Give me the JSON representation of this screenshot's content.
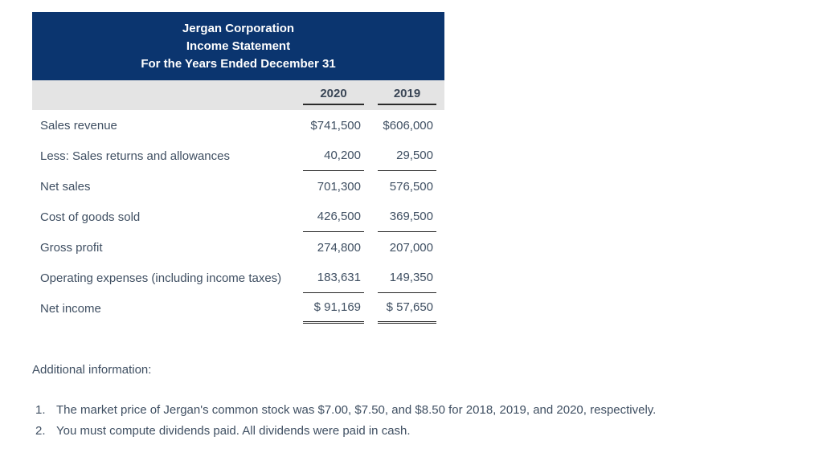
{
  "statement": {
    "title_lines": [
      "Jergan Corporation",
      "Income Statement",
      "For the Years Ended December 31"
    ],
    "columns": [
      "2020",
      "2019"
    ],
    "rows": [
      {
        "label": "Sales revenue",
        "y2020": "$741,500",
        "y2019": "$606,000",
        "underline": "none"
      },
      {
        "label": "Less: Sales returns and allowances",
        "y2020": "40,200",
        "y2019": "29,500",
        "underline": "single"
      },
      {
        "label": "Net sales",
        "y2020": "701,300",
        "y2019": "576,500",
        "underline": "none"
      },
      {
        "label": "Cost of goods sold",
        "y2020": "426,500",
        "y2019": "369,500",
        "underline": "single"
      },
      {
        "label": "Gross profit",
        "y2020": "274,800",
        "y2019": "207,000",
        "underline": "none"
      },
      {
        "label": "Operating expenses (including income taxes)",
        "y2020": "183,631",
        "y2019": "149,350",
        "underline": "single"
      },
      {
        "label": "Net income",
        "y2020": "$ 91,169",
        "y2019": "$ 57,650",
        "underline": "double"
      }
    ]
  },
  "additional": {
    "heading": "Additional information:",
    "items": [
      {
        "number": "1.",
        "text": "The market price of Jergan's common stock was $7.00, $7.50, and $8.50 for 2018, 2019, and 2020, respectively."
      },
      {
        "number": "2.",
        "text": "You must compute dividends paid. All dividends were paid in cash."
      }
    ]
  },
  "colors": {
    "header_bg": "#0b356f",
    "subheader_bg": "#e4e4e4",
    "text": "#3f4f62",
    "rule": "#252525"
  }
}
